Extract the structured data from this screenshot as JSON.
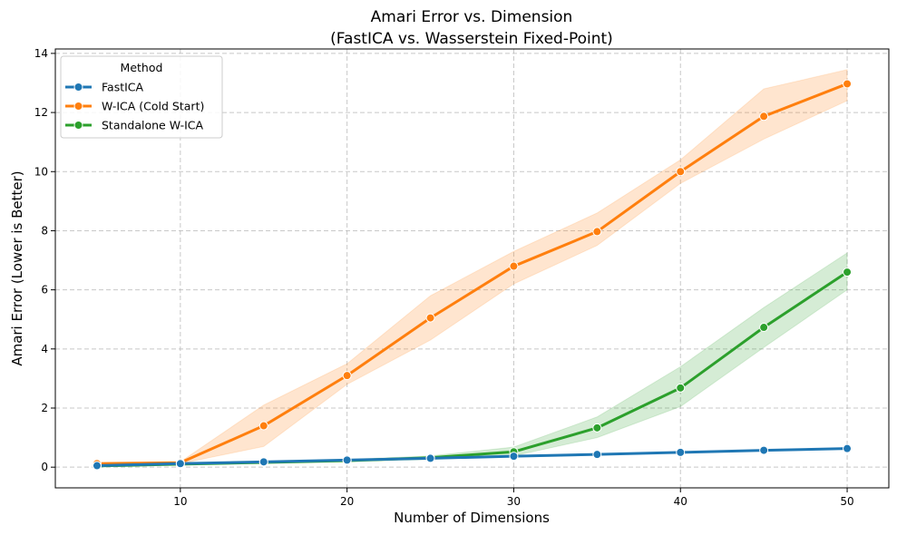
{
  "chart_data": {
    "type": "line",
    "title": [
      "Amari Error vs. Dimension",
      "(FastICA vs. Wasserstein Fixed-Point)"
    ],
    "xlabel": "Number of Dimensions",
    "ylabel": "Amari Error (Lower is Better)",
    "xlim": [
      2.5,
      52.5
    ],
    "ylim": [
      -0.7,
      14.15
    ],
    "xticks": [
      10,
      20,
      30,
      40,
      50
    ],
    "yticks": [
      0,
      2,
      4,
      6,
      8,
      10,
      12,
      14
    ],
    "grid": true,
    "legend": {
      "title": "Method",
      "placement": "top-left"
    },
    "x": [
      5,
      10,
      15,
      20,
      25,
      30,
      35,
      40,
      45,
      50
    ],
    "series": [
      {
        "name": "FastICA",
        "color": "#1f77b4",
        "values": [
          0.05,
          0.12,
          0.18,
          0.24,
          0.3,
          0.37,
          0.43,
          0.5,
          0.57,
          0.63
        ],
        "lower": [
          0.05,
          0.12,
          0.18,
          0.24,
          0.3,
          0.37,
          0.43,
          0.5,
          0.57,
          0.63
        ],
        "upper": [
          0.05,
          0.12,
          0.18,
          0.24,
          0.3,
          0.37,
          0.43,
          0.5,
          0.57,
          0.63
        ]
      },
      {
        "name": "W-ICA (Cold Start)",
        "color": "#ff7f0e",
        "values": [
          0.12,
          0.15,
          1.4,
          3.1,
          5.05,
          6.8,
          7.97,
          10.0,
          11.87,
          12.97
        ],
        "lower": [
          0.08,
          0.12,
          0.7,
          2.8,
          4.3,
          6.2,
          7.5,
          9.6,
          11.1,
          12.4
        ],
        "upper": [
          0.15,
          0.18,
          2.1,
          3.5,
          5.8,
          7.3,
          8.6,
          10.4,
          12.8,
          13.45
        ]
      },
      {
        "name": "Standalone W-ICA",
        "color": "#2ca02c",
        "values": [
          0.04,
          0.1,
          0.16,
          0.22,
          0.32,
          0.52,
          1.33,
          2.68,
          4.73,
          6.6
        ],
        "lower": [
          0.03,
          0.08,
          0.13,
          0.18,
          0.26,
          0.38,
          1.0,
          2.05,
          4.05,
          6.0
        ],
        "upper": [
          0.05,
          0.12,
          0.19,
          0.26,
          0.38,
          0.68,
          1.7,
          3.4,
          5.4,
          7.25
        ]
      }
    ]
  }
}
